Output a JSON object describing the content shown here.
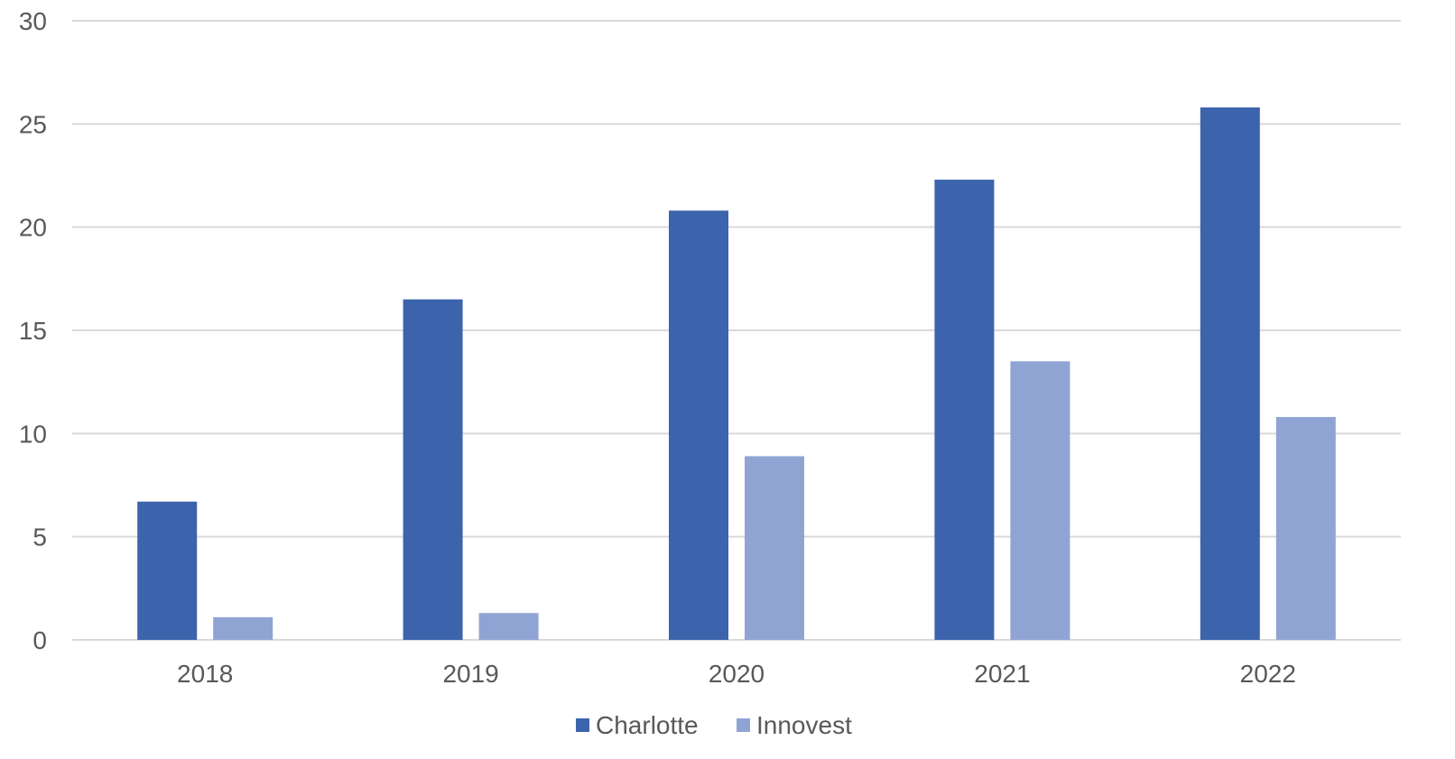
{
  "chart_data": {
    "type": "bar",
    "categories": [
      "2018",
      "2019",
      "2020",
      "2021",
      "2022"
    ],
    "series": [
      {
        "name": "Charlotte",
        "values": [
          6.7,
          16.5,
          20.8,
          22.3,
          25.8
        ],
        "color": "#3C64AC"
      },
      {
        "name": "Innovest",
        "values": [
          1.1,
          1.3,
          8.9,
          13.5,
          10.8
        ],
        "color": "#90A4D4"
      }
    ],
    "ylim": [
      0,
      30
    ],
    "yticks": [
      0,
      5,
      10,
      15,
      20,
      25,
      30
    ],
    "grid": true,
    "legend_position": "bottom-center",
    "gridline_color": "#D9D9D9",
    "text_color": "#595959"
  }
}
